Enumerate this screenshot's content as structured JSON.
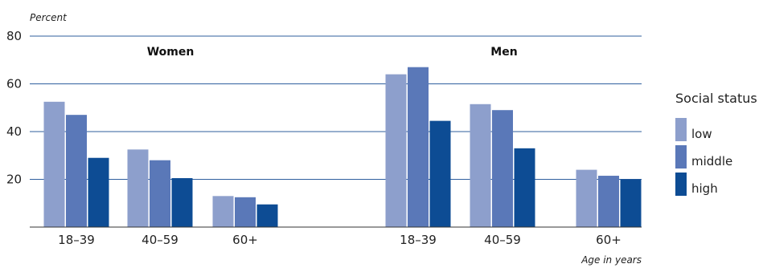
{
  "chart_data": {
    "type": "bar",
    "ylabel": "Percent",
    "xlabel": "Age in years",
    "ylim": [
      0,
      80
    ],
    "yticks": [
      20,
      40,
      60,
      80
    ],
    "grid": true,
    "legend": {
      "title": "Social status",
      "placement": "right",
      "entries": [
        "low",
        "middle",
        "high"
      ]
    },
    "colors": {
      "low": "#8d9fcc",
      "middle": "#5a78b8",
      "high": "#0d4c94",
      "gridline": "#2f5f9e",
      "axis": "#333333"
    },
    "groups": [
      {
        "name": "Women",
        "categories": [
          "18–39",
          "40–59",
          "60+"
        ],
        "series": [
          {
            "name": "low",
            "values": [
              52.5,
              32.5,
              13
            ]
          },
          {
            "name": "middle",
            "values": [
              47,
              28,
              12.5
            ]
          },
          {
            "name": "high",
            "values": [
              29,
              20.5,
              9.5
            ]
          }
        ]
      },
      {
        "name": "Men",
        "categories": [
          "18–39",
          "40–59",
          "60+"
        ],
        "series": [
          {
            "name": "low",
            "values": [
              64,
              51.5,
              24
            ]
          },
          {
            "name": "middle",
            "values": [
              67,
              49,
              21.5
            ]
          },
          {
            "name": "high",
            "values": [
              44.5,
              33,
              20
            ]
          }
        ]
      }
    ]
  }
}
